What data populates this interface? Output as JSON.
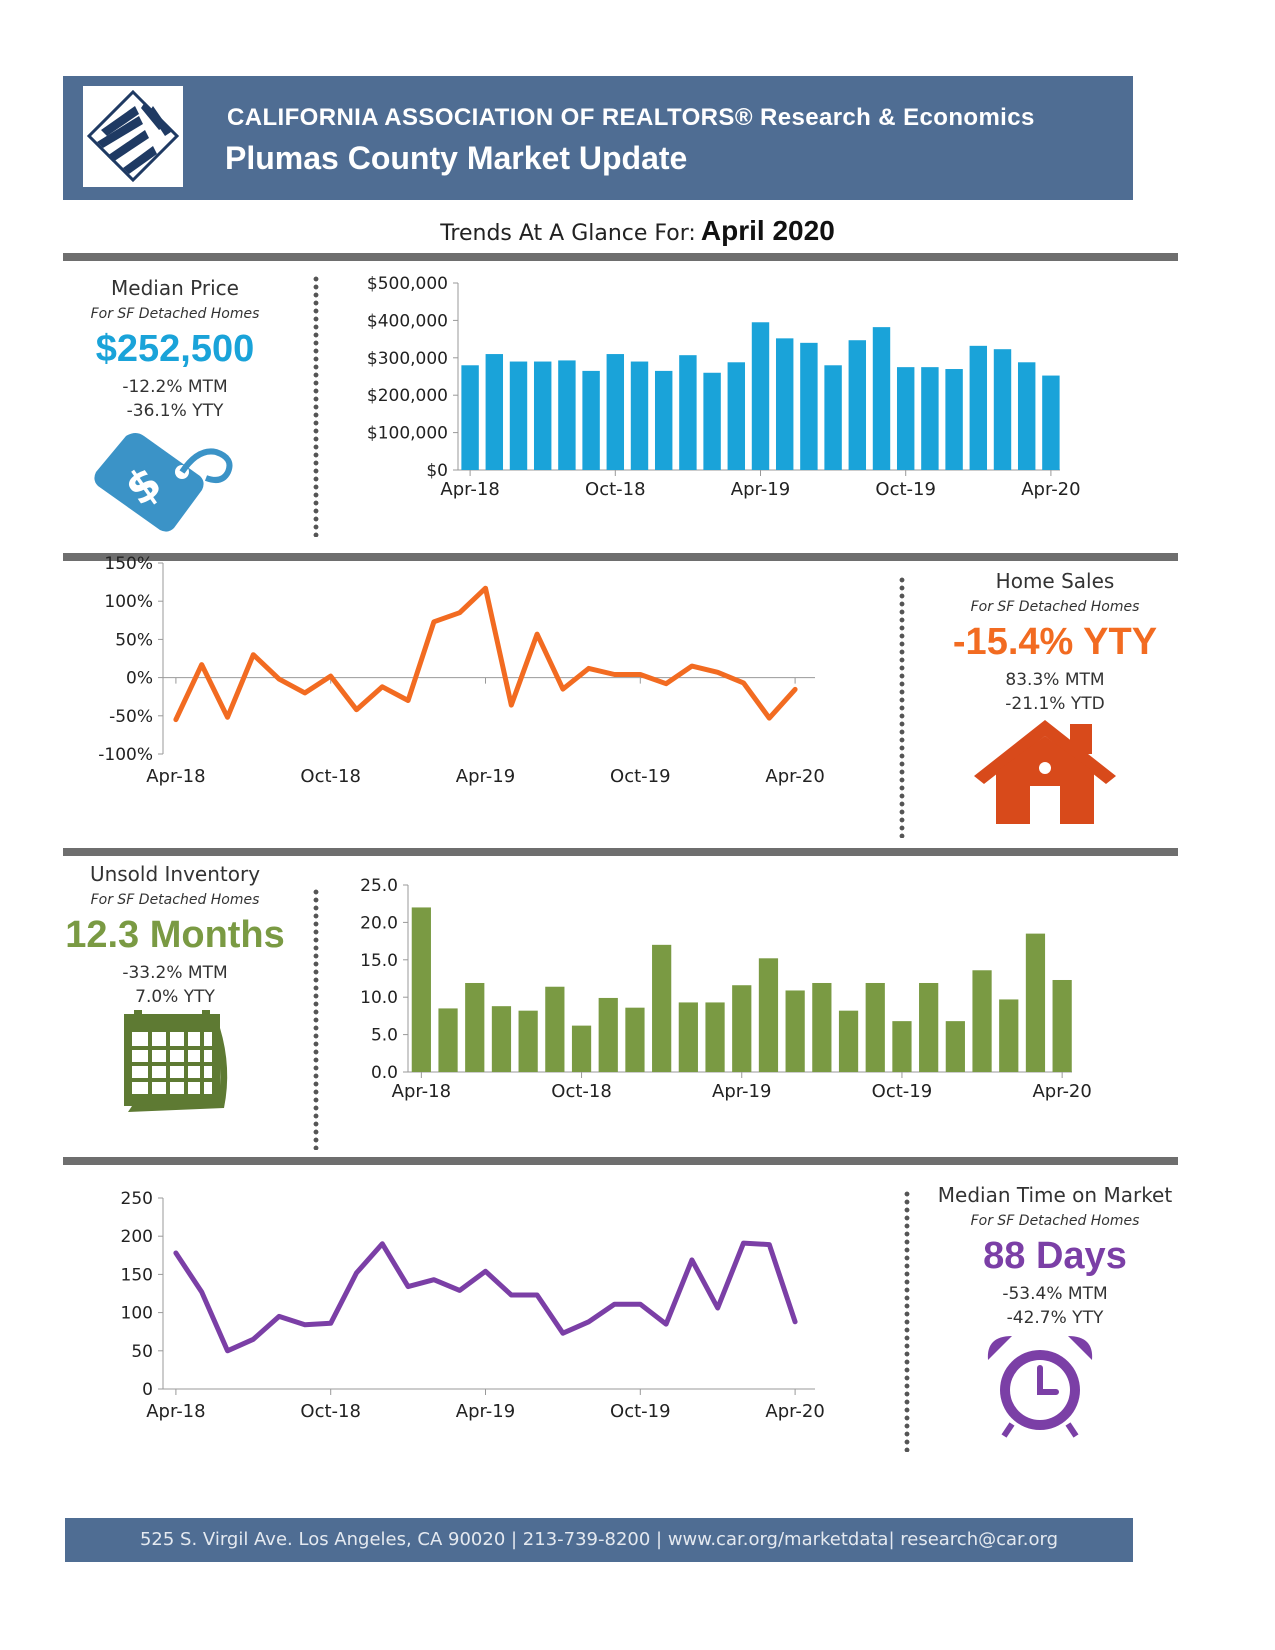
{
  "header": {
    "org_title": "CALIFORNIA ASSOCIATION OF REALTORS® Research & Economics",
    "report_title": "Plumas County Market Update"
  },
  "trends": {
    "label": "Trends At A Glance For:",
    "value": "April 2020"
  },
  "kpis": {
    "median_price": {
      "title": "Median Price",
      "subtitle": "For SF Detached Homes",
      "value": "$252,500",
      "change1": "-12.2% MTM",
      "change2": "-36.1% YTY",
      "color": "#1aa3d9",
      "icon": "price-tag-icon"
    },
    "home_sales": {
      "title": "Home Sales",
      "subtitle": "For SF Detached Homes",
      "value": "-15.4% YTY",
      "change1": "83.3% MTM",
      "change2": "-21.1% YTD",
      "color": "#f26b21",
      "icon": "house-icon"
    },
    "unsold_inventory": {
      "title": "Unsold Inventory",
      "subtitle": "For SF Detached Homes",
      "value": "12.3 Months",
      "change1": "-33.2% MTM",
      "change2": "7.0% YTY",
      "color": "#7a9a43",
      "icon": "calendar-icon"
    },
    "time_on_market": {
      "title": "Median Time on Market",
      "subtitle": "For SF Detached Homes",
      "value": "88 Days",
      "change1": "-53.4% MTM",
      "change2": "-42.7% YTY",
      "color": "#7b3fa6",
      "icon": "alarm-clock-icon"
    }
  },
  "chart_data": [
    {
      "type": "bar",
      "x_tick_labels": [
        "Apr-18",
        "Oct-18",
        "Apr-19",
        "Oct-19",
        "Apr-20"
      ],
      "yticks": [
        "$0",
        "$100,000",
        "$200,000",
        "$300,000",
        "$400,000",
        "$500,000"
      ],
      "ylim": [
        0,
        500000
      ],
      "color": "#1aa3d9",
      "values": [
        280000,
        310000,
        290000,
        290000,
        293000,
        265000,
        310000,
        290000,
        265000,
        307000,
        260000,
        288000,
        395000,
        352000,
        340000,
        280000,
        347000,
        382000,
        275000,
        275000,
        270000,
        332000,
        323000,
        288000,
        252500
      ]
    },
    {
      "type": "line",
      "x_tick_labels": [
        "Apr-18",
        "Oct-18",
        "Apr-19",
        "Oct-19",
        "Apr-20"
      ],
      "yticks": [
        "-100%",
        "-50%",
        "0%",
        "50%",
        "100%",
        "150%"
      ],
      "ylim": [
        -100,
        150
      ],
      "color": "#f26b21",
      "values": [
        -55,
        17,
        -52,
        30,
        -2,
        -20,
        2,
        -42,
        -12,
        -30,
        73,
        85,
        117,
        -36,
        57,
        -15,
        12,
        4,
        4,
        -8,
        15,
        7,
        -7,
        -53,
        -15.4
      ]
    },
    {
      "type": "bar",
      "x_tick_labels": [
        "Apr-18",
        "Oct-18",
        "Apr-19",
        "Oct-19",
        "Apr-20"
      ],
      "yticks": [
        "0.0",
        "5.0",
        "10.0",
        "15.0",
        "20.0",
        "25.0"
      ],
      "ylim": [
        0,
        25
      ],
      "color": "#7a9a43",
      "values": [
        22.0,
        8.5,
        11.9,
        8.8,
        8.2,
        11.4,
        6.2,
        9.9,
        8.6,
        17.0,
        9.3,
        9.3,
        11.6,
        15.2,
        10.9,
        11.9,
        8.2,
        11.9,
        6.8,
        11.9,
        6.8,
        13.6,
        9.7,
        18.5,
        12.3
      ]
    },
    {
      "type": "line",
      "x_tick_labels": [
        "Apr-18",
        "Oct-18",
        "Apr-19",
        "Oct-19",
        "Apr-20"
      ],
      "yticks": [
        "0",
        "50",
        "100",
        "150",
        "200",
        "250"
      ],
      "ylim": [
        0,
        250
      ],
      "color": "#7b3fa6",
      "values": [
        178,
        127,
        50,
        65,
        95,
        84,
        86,
        152,
        190,
        134,
        143,
        129,
        154,
        123,
        123,
        73,
        88,
        111,
        111,
        85,
        169,
        106,
        191,
        189,
        88
      ]
    }
  ],
  "footer": {
    "text": "525 S. Virgil Ave. Los Angeles, CA 90020 | 213-739-8200 | www.car.org/marketdata| research@car.org"
  }
}
